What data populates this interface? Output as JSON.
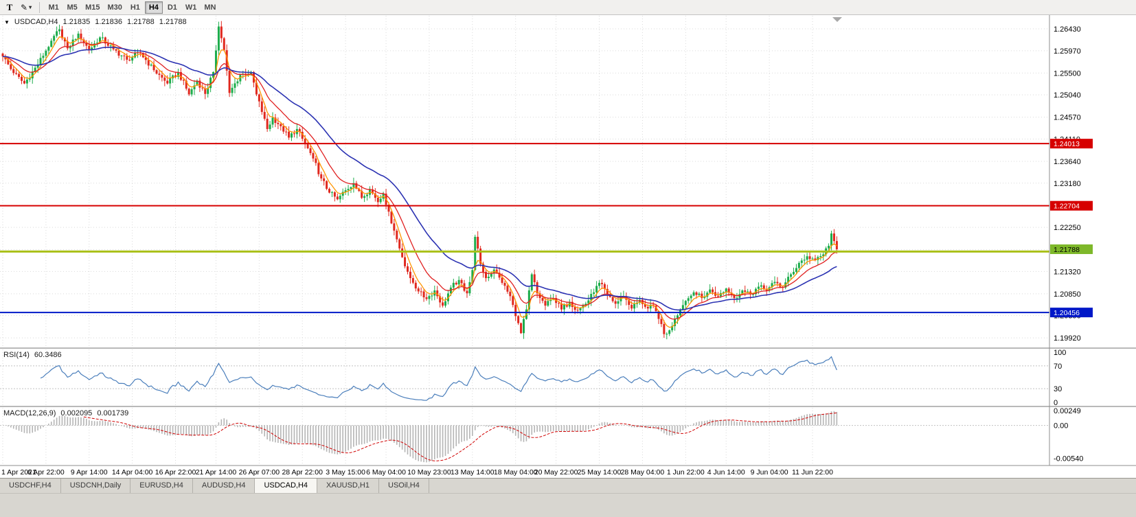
{
  "toolbar": {
    "text_tool": "T",
    "draw_tool_caret": "▾",
    "timeframes": [
      {
        "label": "M1"
      },
      {
        "label": "M5"
      },
      {
        "label": "M15"
      },
      {
        "label": "M30"
      },
      {
        "label": "H1"
      },
      {
        "label": "H4"
      },
      {
        "label": "D1"
      },
      {
        "label": "W1"
      },
      {
        "label": "MN"
      }
    ],
    "active_timeframe": "H4"
  },
  "main_chart": {
    "dropdown_caret": "▼",
    "symbol_period": "USDCAD,H4",
    "ohlc": {
      "open": "1.21835",
      "high": "1.21836",
      "low": "1.21788",
      "close": "1.21788"
    }
  },
  "rsi_panel": {
    "name": "RSI(14)",
    "value": "60.3486",
    "scale_labels": [
      "100",
      "70",
      "30",
      "0"
    ]
  },
  "macd_panel": {
    "name": "MACD(12,26,9)",
    "value_main": "0.002095",
    "value_signal": "0.001739",
    "scale_labels": [
      "0.00249",
      "0.00",
      "-0.00540"
    ]
  },
  "tabs": {
    "items": [
      {
        "label": "USDCHF,H4",
        "active": false
      },
      {
        "label": "USDCNH,Daily",
        "active": false
      },
      {
        "label": "EURUSD,H4",
        "active": false
      },
      {
        "label": "AUDUSD,H4",
        "active": false
      },
      {
        "label": "USDCAD,H4",
        "active": true
      },
      {
        "label": "XAUUSD,H1",
        "active": false
      },
      {
        "label": "USOil,H4",
        "active": false
      }
    ]
  },
  "chart_data": {
    "type": "candlestick",
    "symbol": "USDCAD",
    "timeframe": "H4",
    "num_candles": 310,
    "background": "#ffffff",
    "grid_color": "#d9d9d9",
    "candle_up_color": "#1cac4b",
    "candle_down_color": "#e0281e",
    "price_axis": {
      "min": 1.1972,
      "max": 1.2672,
      "ticks": [
        "1.26430",
        "1.25970",
        "1.25500",
        "1.25040",
        "1.24570",
        "1.24110",
        "1.23640",
        "1.23180",
        "1.22710",
        "1.22250",
        "1.21780",
        "1.21320",
        "1.20850",
        "1.20390",
        "1.19920"
      ]
    },
    "time_axis": {
      "labels": [
        {
          "i": 0,
          "label": "1 Apr 2021"
        },
        {
          "i": 16,
          "label": "6 Apr 22:00"
        },
        {
          "i": 32,
          "label": "9 Apr 14:00"
        },
        {
          "i": 48,
          "label": "14 Apr 04:00"
        },
        {
          "i": 64,
          "label": "16 Apr 22:00"
        },
        {
          "i": 79,
          "label": "21 Apr 14:00"
        },
        {
          "i": 95,
          "label": "26 Apr 07:00"
        },
        {
          "i": 111,
          "label": "28 Apr 22:00"
        },
        {
          "i": 127,
          "label": "3 May 15:00"
        },
        {
          "i": 142,
          "label": "6 May 04:00"
        },
        {
          "i": 158,
          "label": "10 May 23:00"
        },
        {
          "i": 174,
          "label": "13 May 14:00"
        },
        {
          "i": 190,
          "label": "18 May 04:00"
        },
        {
          "i": 205,
          "label": "20 May 22:00"
        },
        {
          "i": 221,
          "label": "25 May 14:00"
        },
        {
          "i": 237,
          "label": "28 May 04:00"
        },
        {
          "i": 253,
          "label": "1 Jun 22:00"
        },
        {
          "i": 268,
          "label": "4 Jun 14:00"
        },
        {
          "i": 284,
          "label": "9 Jun 04:00"
        },
        {
          "i": 300,
          "label": "11 Jun 22:00"
        }
      ]
    },
    "price_keyframes": [
      [
        0,
        1.2585
      ],
      [
        4,
        1.255
      ],
      [
        8,
        1.2528
      ],
      [
        13,
        1.2568
      ],
      [
        18,
        1.2618
      ],
      [
        21,
        1.2642
      ],
      [
        24,
        1.2602
      ],
      [
        28,
        1.2633
      ],
      [
        32,
        1.2598
      ],
      [
        36,
        1.2625
      ],
      [
        41,
        1.26
      ],
      [
        46,
        1.2578
      ],
      [
        51,
        1.2592
      ],
      [
        56,
        1.2556
      ],
      [
        61,
        1.2528
      ],
      [
        65,
        1.2552
      ],
      [
        69,
        1.2505
      ],
      [
        72,
        1.2534
      ],
      [
        75,
        1.2506
      ],
      [
        78,
        1.2552
      ],
      [
        80,
        1.2648
      ],
      [
        82,
        1.2598
      ],
      [
        84,
        1.2508
      ],
      [
        88,
        1.2546
      ],
      [
        92,
        1.2552
      ],
      [
        94,
        1.2505
      ],
      [
        96,
        1.2468
      ],
      [
        98,
        1.2432
      ],
      [
        100,
        1.2456
      ],
      [
        103,
        1.2438
      ],
      [
        106,
        1.2414
      ],
      [
        109,
        1.2432
      ],
      [
        112,
        1.24
      ],
      [
        115,
        1.237
      ],
      [
        118,
        1.2328
      ],
      [
        121,
        1.2298
      ],
      [
        124,
        1.2284
      ],
      [
        127,
        1.2303
      ],
      [
        130,
        1.2318
      ],
      [
        133,
        1.2287
      ],
      [
        136,
        1.2305
      ],
      [
        139,
        1.2278
      ],
      [
        141,
        1.2296
      ],
      [
        143,
        1.2258
      ],
      [
        145,
        1.2218
      ],
      [
        148,
        1.2162
      ],
      [
        151,
        1.2118
      ],
      [
        154,
        1.209
      ],
      [
        157,
        1.2074
      ],
      [
        160,
        1.2092
      ],
      [
        163,
        1.206
      ],
      [
        166,
        1.2098
      ],
      [
        169,
        1.2114
      ],
      [
        172,
        1.2086
      ],
      [
        174,
        1.2135
      ],
      [
        175,
        1.2205
      ],
      [
        177,
        1.2148
      ],
      [
        179,
        1.2118
      ],
      [
        182,
        1.2136
      ],
      [
        185,
        1.2108
      ],
      [
        188,
        1.208
      ],
      [
        190,
        1.2038
      ],
      [
        192,
        1.2002
      ],
      [
        194,
        1.2052
      ],
      [
        196,
        1.2126
      ],
      [
        198,
        1.2086
      ],
      [
        201,
        1.206
      ],
      [
        204,
        1.2076
      ],
      [
        207,
        1.2052
      ],
      [
        210,
        1.2068
      ],
      [
        213,
        1.205
      ],
      [
        216,
        1.2064
      ],
      [
        219,
        1.2088
      ],
      [
        221,
        1.2108
      ],
      [
        224,
        1.2084
      ],
      [
        227,
        1.2064
      ],
      [
        230,
        1.208
      ],
      [
        233,
        1.2054
      ],
      [
        236,
        1.2072
      ],
      [
        239,
        1.2054
      ],
      [
        241,
        1.206
      ],
      [
        243,
        1.2032
      ],
      [
        245,
        1.2
      ],
      [
        247,
        1.2008
      ],
      [
        249,
        1.2032
      ],
      [
        251,
        1.2052
      ],
      [
        253,
        1.207
      ],
      [
        256,
        1.2088
      ],
      [
        259,
        1.2076
      ],
      [
        262,
        1.2094
      ],
      [
        265,
        1.208
      ],
      [
        268,
        1.2096
      ],
      [
        271,
        1.2076
      ],
      [
        274,
        1.2092
      ],
      [
        277,
        1.2084
      ],
      [
        280,
        1.21
      ],
      [
        283,
        1.2092
      ],
      [
        286,
        1.211
      ],
      [
        289,
        1.2098
      ],
      [
        292,
        1.2126
      ],
      [
        295,
        1.215
      ],
      [
        298,
        1.2164
      ],
      [
        301,
        1.2156
      ],
      [
        304,
        1.2168
      ],
      [
        306,
        1.2186
      ],
      [
        307,
        1.2212
      ],
      [
        308,
        1.2196
      ],
      [
        309,
        1.21788
      ]
    ],
    "moving_averages": [
      {
        "period": 5,
        "color": "#ff9500"
      },
      {
        "period": 13,
        "color": "#e02020"
      },
      {
        "period": 34,
        "color": "#2b32b2"
      }
    ],
    "horizontal_lines": [
      {
        "id": "resistance-1",
        "price": 1.24013,
        "label": "1.24013",
        "color": "#d60000",
        "tag_text_color": "#ffffff",
        "width": 2
      },
      {
        "id": "resistance-2",
        "price": 1.22704,
        "label": "1.22704",
        "color": "#d60000",
        "tag_text_color": "#ffffff",
        "width": 2
      },
      {
        "id": "support-current",
        "price": 1.2174,
        "label": "",
        "color": "#a9c018",
        "tag_text_color": "#000000",
        "width": 3
      },
      {
        "id": "support-1",
        "price": 1.20456,
        "label": "1.20456",
        "color": "#0018c8",
        "tag_text_color": "#ffffff",
        "width": 2
      }
    ],
    "current_price": {
      "value": 1.21788,
      "label": "1.21788",
      "tag_color": "#7eb82a",
      "tag_text_color": "#000000"
    },
    "rsi": {
      "period": 14,
      "current": 60.3486,
      "levels": [
        70,
        30
      ],
      "color": "#4a7ebb"
    },
    "macd": {
      "fast": 12,
      "slow": 26,
      "signal_period": 9,
      "main": 0.002095,
      "signal": 0.001739,
      "hist_color": "#b4b4b4",
      "signal_color": "#d00000"
    }
  }
}
